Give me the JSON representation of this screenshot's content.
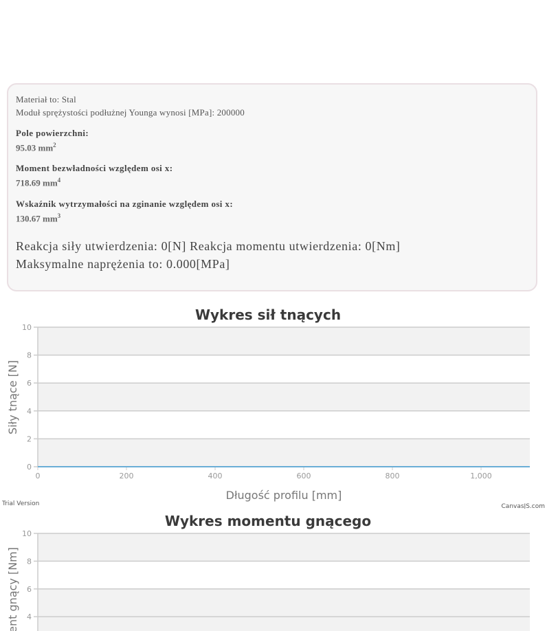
{
  "info": {
    "material": "Materiał to: Stal",
    "modulus": "Moduł sprężystości podłużnej Younga wynosi [MPa]: 200000",
    "area_label": "Pole powierzchni:",
    "area_value": "95.03 mm",
    "area_exp": "2",
    "inertia_label": "Moment bezwładności względem osi x:",
    "inertia_value": "718.69 mm",
    "inertia_exp": "4",
    "section_label": "Wskaźnik wytrzymałości na zginanie względem osi x:",
    "section_value": "130.67 mm",
    "section_exp": "3",
    "reactions": "Reakcja siły utwierdzenia: 0[N] Reakcja momentu utwierdzenia: 0[Nm]",
    "max_stress": "Maksymalne naprężenia to: 0.000[MPa]"
  },
  "colors": {
    "series": "#6aaed6",
    "band": "#f2f2f2",
    "grid": "#cccccc",
    "axis_text": "#999999",
    "title": "#3a3a3a"
  },
  "chart_data": [
    {
      "type": "line",
      "title": "Wykres sił tnących",
      "xlabel": "Długość profilu [mm]",
      "ylabel": "Siły tnące [N]",
      "xlim": [
        0,
        1110
      ],
      "ylim": [
        0,
        10
      ],
      "x_ticks": [
        0,
        200,
        400,
        600,
        800,
        1000
      ],
      "x_tick_labels": [
        "0",
        "200",
        "400",
        "600",
        "800",
        "1,000"
      ],
      "y_ticks": [
        0,
        2,
        4,
        6,
        8,
        10
      ],
      "y_tick_labels": [
        "0",
        "2",
        "4",
        "6",
        "8",
        "10"
      ],
      "grid": true,
      "series": [
        {
          "x": [
            0,
            1110
          ],
          "y": [
            0,
            0
          ]
        }
      ],
      "watermark_left": "Trial Version",
      "watermark_right": "CanvasJS.com"
    },
    {
      "type": "line",
      "title": "Wykres momentu gnącego",
      "ylabel": "Moment gnący [Nm]",
      "ylim": [
        0,
        10
      ],
      "y_ticks": [
        4,
        6,
        8,
        10
      ],
      "y_tick_labels": [
        "4",
        "6",
        "8",
        "10"
      ],
      "grid": true
    }
  ]
}
